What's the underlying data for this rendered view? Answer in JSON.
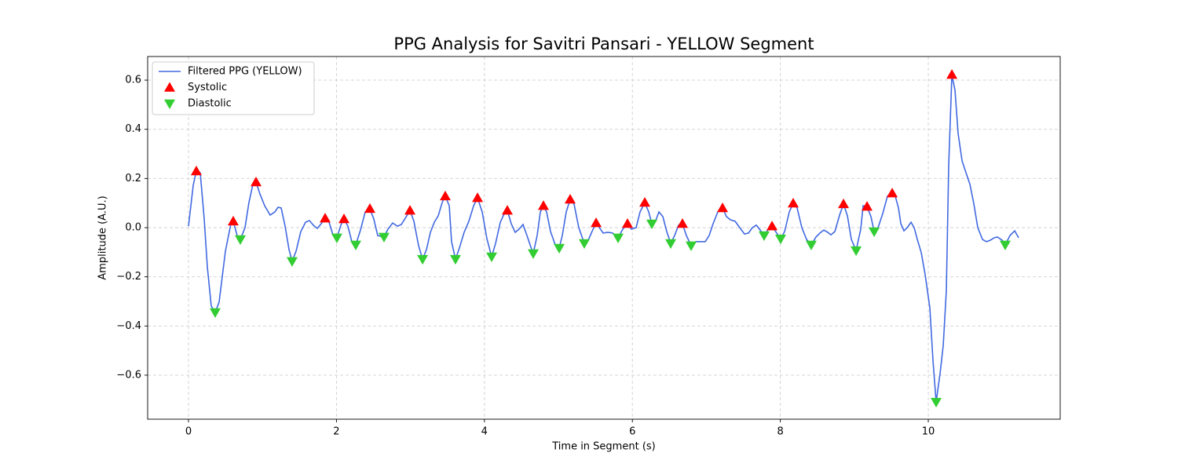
{
  "chart_data": {
    "type": "line",
    "title": "PPG Analysis for Savitri Pansari - YELLOW Segment",
    "xlabel": "Time in Segment (s)",
    "ylabel": "Amplitude (A.U.)",
    "xlim": [
      -0.552,
      11.783
    ],
    "ylim": [
      -0.779,
      0.696
    ],
    "xticks": [
      0,
      2,
      4,
      6,
      8,
      10
    ],
    "yticks": [
      {
        "value": -0.6,
        "label": "−0.6"
      },
      {
        "value": -0.4,
        "label": "−0.4"
      },
      {
        "value": -0.2,
        "label": "−0.2"
      },
      {
        "value": 0,
        "label": "0.0"
      },
      0.2,
      0.4,
      0.6
    ],
    "grid": true,
    "legend": "upper left",
    "series": [
      {
        "name": "Filtered PPG (YELLOW)",
        "color": "#4169e1",
        "marker": "line",
        "x": [
          0,
          0.064,
          0.106,
          0.159,
          0.212,
          0.255,
          0.308,
          0.361,
          0.414,
          0.499,
          0.573,
          0.605,
          0.658,
          0.701,
          0.764,
          0.817,
          0.871,
          0.913,
          0.966,
          1.03,
          1.104,
          1.168,
          1.21,
          1.253,
          1.306,
          1.359,
          1.401,
          1.454,
          1.518,
          1.582,
          1.635,
          1.688,
          1.741,
          1.794,
          1.847,
          1.9,
          1.953,
          2.006,
          2.059,
          2.102,
          2.155,
          2.208,
          2.261,
          2.325,
          2.389,
          2.452,
          2.505,
          2.558,
          2.643,
          2.696,
          2.76,
          2.824,
          2.877,
          2.93,
          2.994,
          3.047,
          3.11,
          3.164,
          3.217,
          3.27,
          3.323,
          3.376,
          3.429,
          3.471,
          3.525,
          3.556,
          3.609,
          3.662,
          3.726,
          3.79,
          3.854,
          3.907,
          3.97,
          4.034,
          4.098,
          4.151,
          4.215,
          4.268,
          4.31,
          4.363,
          4.416,
          4.469,
          4.522,
          4.575,
          4.629,
          4.66,
          4.713,
          4.756,
          4.798,
          4.841,
          4.894,
          4.958,
          5.011,
          5.053,
          5.106,
          5.159,
          5.212,
          5.276,
          5.35,
          5.403,
          5.478,
          5.51,
          5.605,
          5.669,
          5.733,
          5.807,
          5.871,
          5.934,
          5.987,
          6.051,
          6.104,
          6.168,
          6.221,
          6.263,
          6.316,
          6.359,
          6.412,
          6.465,
          6.518,
          6.571,
          6.624,
          6.677,
          6.73,
          6.794,
          6.858,
          6.922,
          6.985,
          7.038,
          7.091,
          7.155,
          7.219,
          7.272,
          7.325,
          7.389,
          7.452,
          7.516,
          7.569,
          7.622,
          7.675,
          7.728,
          7.781,
          7.845,
          7.888,
          7.951,
          8.004,
          8.058,
          8.121,
          8.174,
          8.227,
          8.291,
          8.355,
          8.418,
          8.482,
          8.535,
          8.588,
          8.641,
          8.684,
          8.737,
          8.801,
          8.854,
          8.907,
          8.96,
          9.024,
          9.087,
          9.119,
          9.172,
          9.225,
          9.268,
          9.321,
          9.384,
          9.448,
          9.512,
          9.554,
          9.597,
          9.629,
          9.671,
          9.714,
          9.767,
          9.809,
          9.852,
          9.905,
          9.958,
          10.021,
          10.064,
          10.106,
          10.16,
          10.202,
          10.244,
          10.276,
          10.319,
          10.361,
          10.403,
          10.457,
          10.51,
          10.563,
          10.616,
          10.669,
          10.733,
          10.786,
          10.839,
          10.892,
          10.934,
          10.998,
          11.04,
          11.104,
          11.168,
          11.221
        ],
        "values": [
          0.006,
          0.172,
          0.23,
          0.223,
          0.038,
          -0.16,
          -0.319,
          -0.345,
          -0.303,
          -0.096,
          0.016,
          0.026,
          -0.032,
          -0.048,
          0,
          0.102,
          0.176,
          0.185,
          0.137,
          0.089,
          0.051,
          0.064,
          0.083,
          0.08,
          0.006,
          -0.089,
          -0.137,
          -0.096,
          -0.016,
          0.022,
          0.029,
          0.01,
          -0.003,
          0.016,
          0.038,
          0.022,
          -0.029,
          -0.041,
          0.01,
          0.035,
          0.006,
          -0.057,
          -0.07,
          -0.01,
          0.064,
          0.077,
          0.035,
          -0.032,
          -0.038,
          -0.006,
          0.019,
          0.006,
          0.013,
          0.038,
          0.07,
          0.026,
          -0.073,
          -0.128,
          -0.089,
          -0.019,
          0.022,
          0.048,
          0.102,
          0.128,
          0.089,
          -0.057,
          -0.128,
          -0.083,
          -0.019,
          0.026,
          0.089,
          0.121,
          0.064,
          -0.045,
          -0.118,
          -0.064,
          0.022,
          0.057,
          0.07,
          0.016,
          -0.019,
          -0.006,
          0.013,
          -0.032,
          -0.08,
          -0.105,
          -0.032,
          0.064,
          0.089,
          0.064,
          -0.016,
          -0.07,
          -0.083,
          -0.032,
          0.064,
          0.115,
          0.096,
          0,
          -0.064,
          -0.051,
          0,
          0.019,
          -0.022,
          -0.019,
          -0.022,
          -0.041,
          -0.006,
          0.016,
          -0.006,
          0,
          0.064,
          0.102,
          0.064,
          0.016,
          0.029,
          0.064,
          0.045,
          -0.016,
          -0.064,
          -0.032,
          0.01,
          0.016,
          -0.032,
          -0.073,
          -0.057,
          -0.057,
          -0.057,
          -0.032,
          0.016,
          0.064,
          0.08,
          0.045,
          0.032,
          0.026,
          0,
          -0.026,
          -0.022,
          0,
          0.01,
          -0.01,
          -0.032,
          -0.003,
          0.006,
          -0.022,
          -0.045,
          -0.016,
          0.064,
          0.099,
          0.08,
          0,
          -0.048,
          -0.07,
          -0.038,
          -0.022,
          -0.01,
          -0.019,
          -0.029,
          -0.016,
          0.051,
          0.096,
          0.048,
          -0.048,
          -0.093,
          -0.006,
          0.089,
          0.086,
          0.045,
          -0.016,
          0,
          0.057,
          0.128,
          0.14,
          0.128,
          0.08,
          0.016,
          -0.013,
          0,
          0.022,
          0,
          -0.048,
          -0.102,
          -0.192,
          -0.326,
          -0.543,
          -0.709,
          -0.591,
          -0.479,
          -0.255,
          0.255,
          0.622,
          0.559,
          0.383,
          0.271,
          0.223,
          0.176,
          0.096,
          0,
          -0.048,
          -0.057,
          -0.051,
          -0.041,
          -0.038,
          -0.051,
          -0.07,
          -0.032,
          -0.013,
          -0.041
        ]
      },
      {
        "name": "Systolic",
        "color": "#ff0000",
        "marker": "up",
        "x": [
          0.106,
          0.605,
          0.913,
          1.847,
          2.102,
          2.452,
          2.994,
          3.471,
          3.907,
          4.31,
          4.798,
          5.159,
          5.51,
          5.934,
          6.168,
          6.677,
          7.219,
          7.888,
          8.174,
          8.854,
          9.172,
          9.512,
          10.319
        ],
        "values": [
          0.23,
          0.026,
          0.185,
          0.038,
          0.035,
          0.077,
          0.07,
          0.128,
          0.121,
          0.07,
          0.089,
          0.115,
          0.019,
          0.016,
          0.102,
          0.016,
          0.08,
          0.006,
          0.099,
          0.096,
          0.086,
          0.14,
          0.622
        ]
      },
      {
        "name": "Diastolic",
        "color": "#32cd32",
        "marker": "down",
        "x": [
          0.361,
          0.701,
          1.401,
          2.006,
          2.261,
          2.643,
          3.164,
          3.609,
          4.098,
          4.66,
          5.011,
          5.35,
          5.807,
          6.263,
          6.518,
          6.794,
          7.781,
          8.004,
          8.418,
          9.024,
          9.268,
          10.106,
          11.04
        ],
        "values": [
          -0.345,
          -0.048,
          -0.137,
          -0.041,
          -0.07,
          -0.038,
          -0.128,
          -0.128,
          -0.118,
          -0.105,
          -0.083,
          -0.064,
          -0.041,
          0.016,
          -0.064,
          -0.073,
          -0.032,
          -0.045,
          -0.07,
          -0.093,
          -0.016,
          -0.709,
          -0.07
        ]
      }
    ]
  }
}
